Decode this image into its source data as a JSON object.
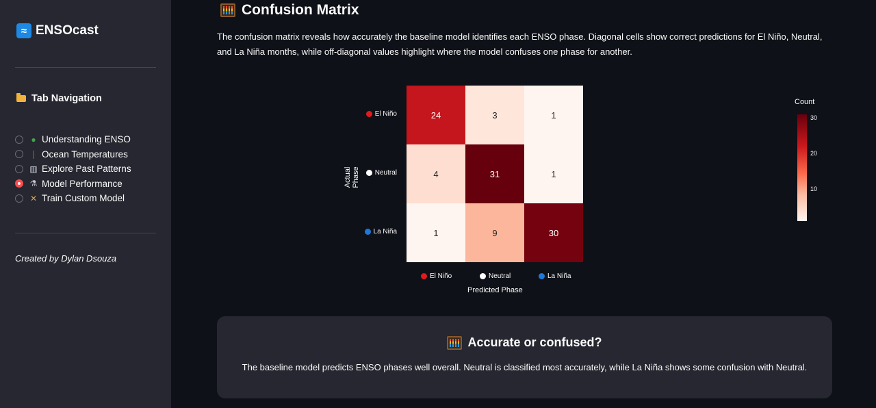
{
  "sidebar": {
    "brand": "ENSOcast",
    "tab_nav_title": "Tab Navigation",
    "items": [
      {
        "label": "Understanding ENSO",
        "icon": "globe-icon",
        "checked": false
      },
      {
        "label": "Ocean Temperatures",
        "icon": "thermometer-icon",
        "checked": false
      },
      {
        "label": "Explore Past Patterns",
        "icon": "bar-chart-icon",
        "checked": false
      },
      {
        "label": "Model Performance",
        "icon": "microscope-icon",
        "checked": true
      },
      {
        "label": "Train Custom Model",
        "icon": "tools-icon",
        "checked": false
      }
    ],
    "credit": "Created by Dylan Dsouza"
  },
  "main": {
    "title": "Confusion Matrix",
    "intro": "The confusion matrix reveals how accurately the baseline model identifies each ENSO phase. Diagonal cells show correct predictions for El Niño, Neutral, and La Niña months, while off-diagonal values highlight where the model confuses one phase for another.",
    "callout": {
      "title": "Accurate or confused?",
      "text": "The baseline model predicts ENSO phases well overall. Neutral is classified most accurately, while La Niña shows some confusion with Neutral."
    }
  },
  "colors": {
    "el_nino": "#e31a1c",
    "neutral": "#ffffff",
    "la_nina": "#1e78d8",
    "accent": "#ff4b4b"
  },
  "chart_data": {
    "type": "heatmap",
    "title": "",
    "xlabel": "Predicted Phase",
    "ylabel": "Actual Phase",
    "x_categories": [
      "El Niño",
      "Neutral",
      "La Niña"
    ],
    "y_categories": [
      "El Niño",
      "Neutral",
      "La Niña"
    ],
    "values": [
      [
        24,
        3,
        1
      ],
      [
        4,
        31,
        1
      ],
      [
        1,
        9,
        30
      ]
    ],
    "colorbar": {
      "title": "Count",
      "ticks": [
        10,
        20,
        30
      ],
      "range": [
        1,
        31
      ],
      "colorscale": "Reds"
    }
  }
}
